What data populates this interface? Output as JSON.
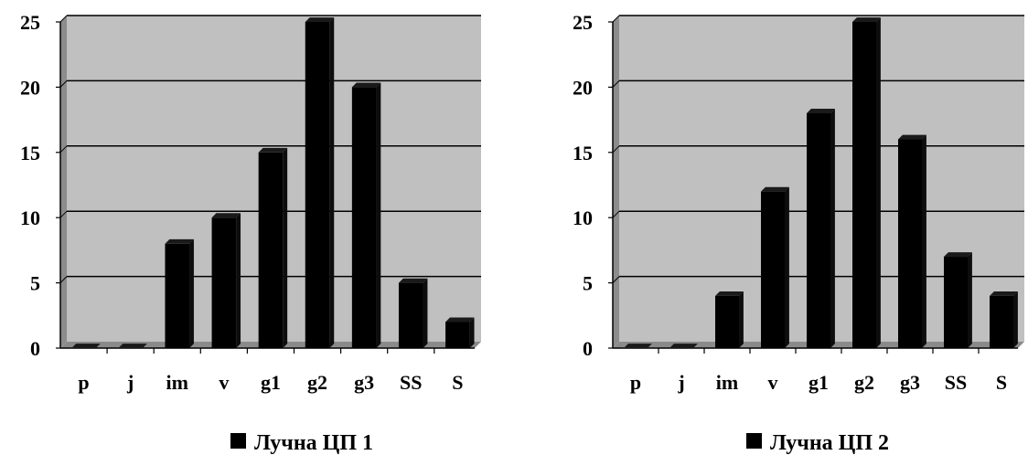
{
  "chart_data": [
    {
      "type": "bar",
      "categories": [
        "p",
        "j",
        "im",
        "v",
        "g1",
        "g2",
        "g3",
        "SS",
        "S"
      ],
      "values": [
        0,
        0,
        8,
        10,
        15,
        25,
        20,
        5,
        2
      ],
      "legend": "Лучна ЦП 1",
      "legend_position": "bottom",
      "ylim": [
        0,
        25
      ],
      "yticks": [
        "0",
        "5",
        "10",
        "15",
        "20",
        "25"
      ],
      "grid": true,
      "colors": {
        "bar": "#000000",
        "plot_bg": "#c0c0c0",
        "side_wall": "#8c8c8c",
        "floor": "#8a8a8a"
      }
    },
    {
      "type": "bar",
      "categories": [
        "p",
        "j",
        "im",
        "v",
        "g1",
        "g2",
        "g3",
        "SS",
        "S"
      ],
      "values": [
        0,
        0,
        4,
        12,
        18,
        25,
        16,
        7,
        4
      ],
      "legend": "Лучна ЦП 2",
      "legend_position": "bottom",
      "ylim": [
        0,
        25
      ],
      "yticks": [
        "0",
        "5",
        "10",
        "15",
        "20",
        "25"
      ],
      "grid": true,
      "colors": {
        "bar": "#000000",
        "plot_bg": "#c0c0c0",
        "side_wall": "#8c8c8c",
        "floor": "#8a8a8a"
      }
    }
  ]
}
